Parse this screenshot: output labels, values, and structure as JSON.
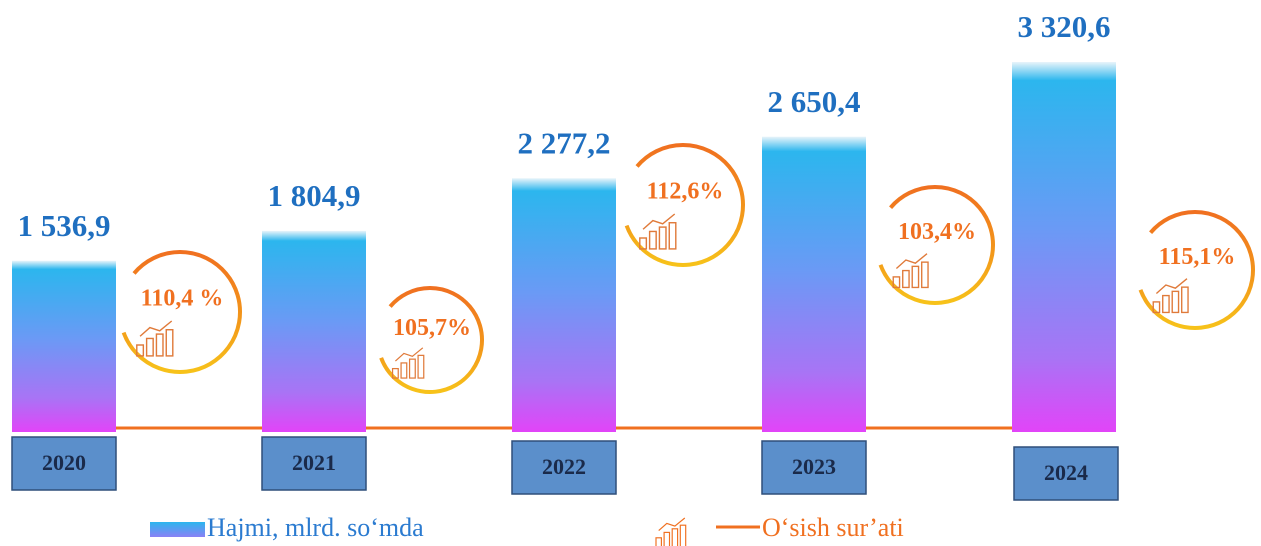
{
  "chart_data": {
    "type": "bar",
    "categories": [
      "2020",
      "2021",
      "2022",
      "2023",
      "2024"
    ],
    "series": [
      {
        "name": "Hajmi, mlrd. so‘mda",
        "color": "#1f6fc0",
        "values": [
          1536.9,
          1804.9,
          2277.2,
          2650.4,
          3320.6
        ],
        "value_labels": [
          "1 536,9",
          "1 804,9",
          "2 277,2",
          "2 650,4",
          "3 320,6"
        ]
      },
      {
        "name": "O‘sish sur’ati",
        "color": "#f07020",
        "values": [
          110.4,
          105.7,
          112.6,
          103.4,
          115.1
        ],
        "value_labels": [
          "110,4 %",
          "105,7%",
          "112,6%",
          "103,4%",
          "115,1%"
        ]
      }
    ]
  }
}
